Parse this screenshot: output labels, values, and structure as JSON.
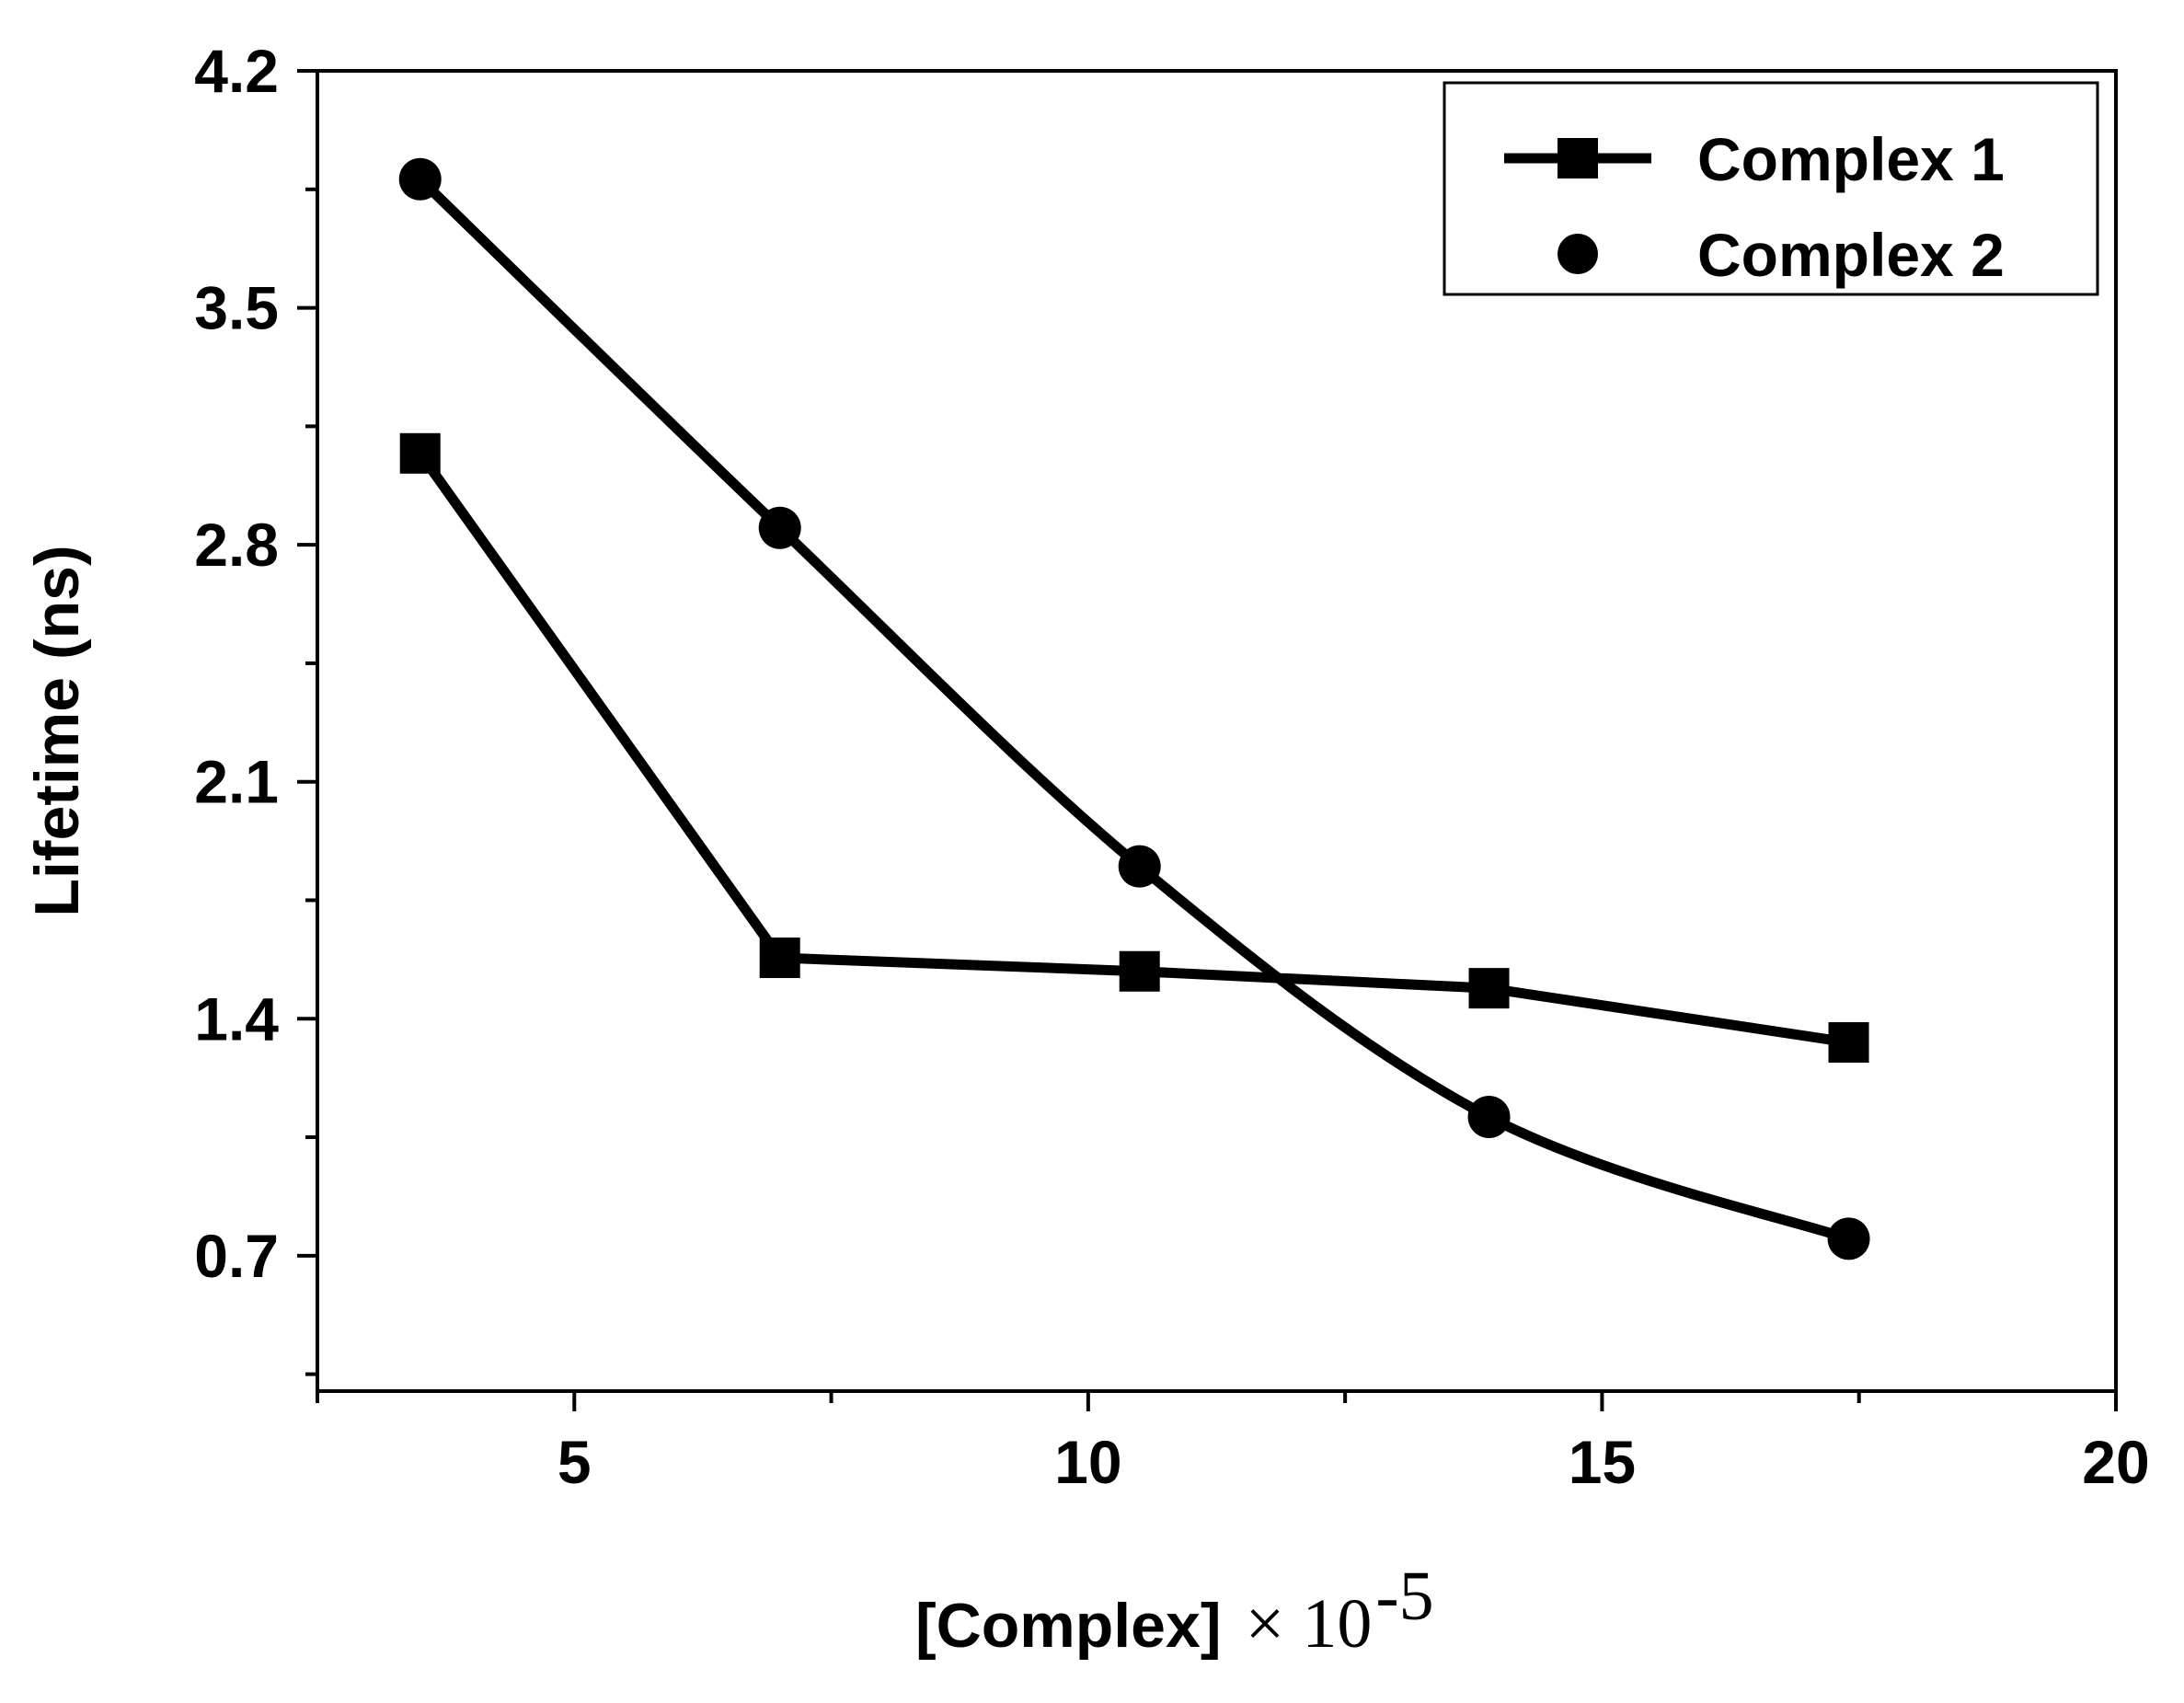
{
  "chart_data": {
    "type": "line",
    "xlabel": "[Complex]",
    "xlabel_suffix": "× 10",
    "xlabel_exponent": "-5",
    "ylabel": "Lifetime (ns)",
    "xlim": [
      2.5,
      20
    ],
    "ylim": [
      0.3,
      4.2
    ],
    "xticks": [
      5,
      10,
      15,
      20
    ],
    "xtick_labels": [
      "5",
      "10",
      "15",
      "20"
    ],
    "yticks": [
      0.7,
      1.4,
      2.1,
      2.8,
      3.5,
      4.2
    ],
    "ytick_labels": [
      "0.7",
      "1.4",
      "2.1",
      "2.8",
      "3.5",
      "4.2"
    ],
    "grid": false,
    "legend_position": "top-right",
    "series": [
      {
        "name": "Complex 1",
        "marker": "square",
        "line": "solid",
        "color": "#000000",
        "x": [
          3.5,
          7.0,
          10.5,
          13.9,
          17.4
        ],
        "y": [
          3.07,
          1.58,
          1.54,
          1.49,
          1.33
        ]
      },
      {
        "name": "Complex 2",
        "marker": "circle",
        "line": "smooth",
        "color": "#000000",
        "x": [
          3.5,
          7.0,
          10.5,
          13.9,
          17.4
        ],
        "y": [
          3.88,
          2.85,
          1.85,
          1.11,
          0.75
        ]
      }
    ]
  }
}
